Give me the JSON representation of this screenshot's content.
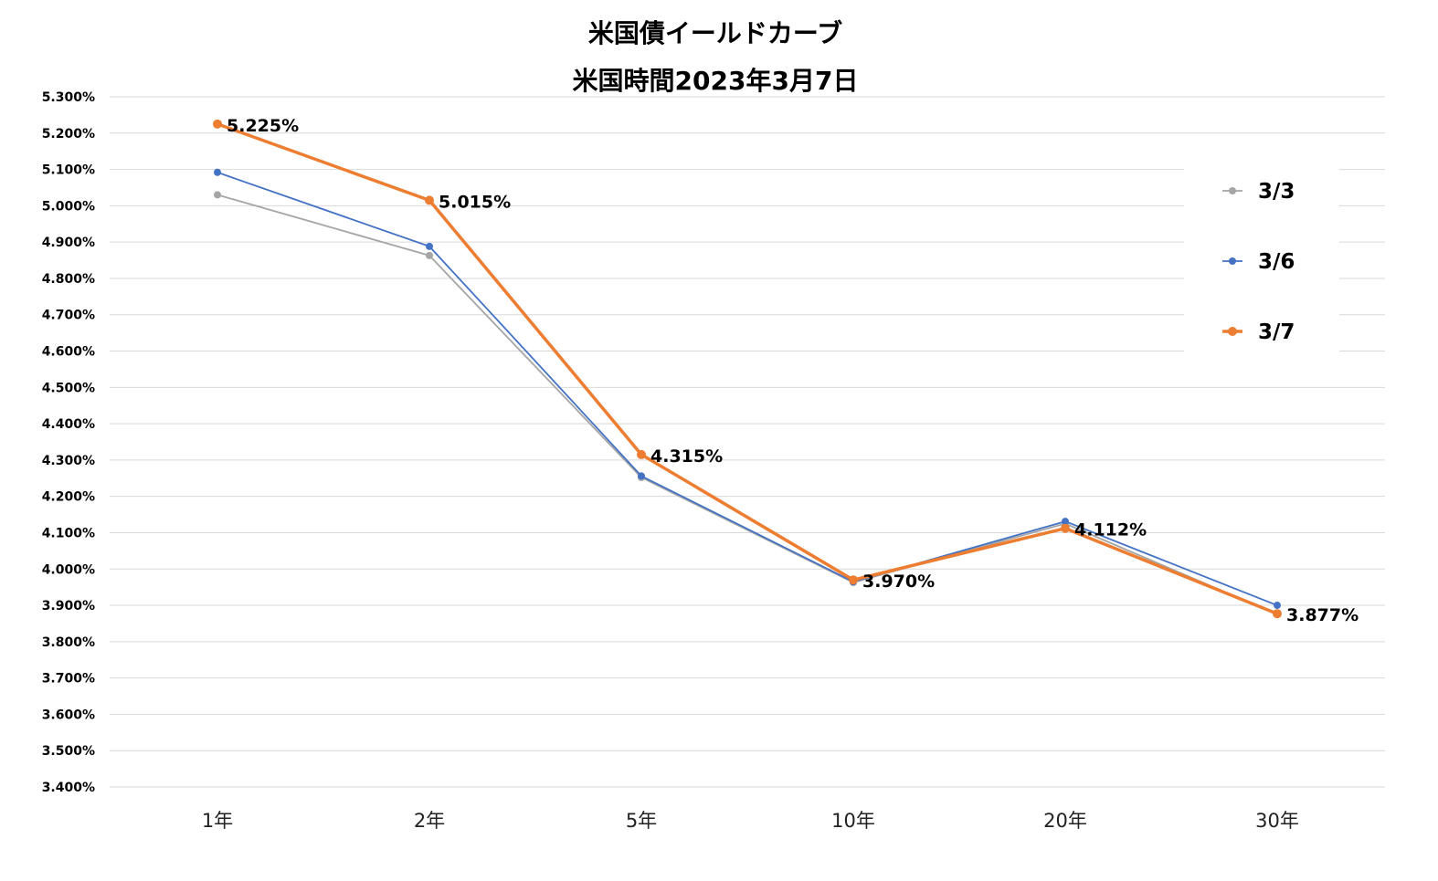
{
  "chart_data": {
    "type": "line",
    "title": "米国債イールドカーブ",
    "subtitle": "米国時間2023年3月7日",
    "categories": [
      "1年",
      "2年",
      "5年",
      "10年",
      "20年",
      "30年"
    ],
    "ylim": [
      3.4,
      5.3
    ],
    "y_ticks": [
      "3.400%",
      "3.500%",
      "3.600%",
      "3.700%",
      "3.800%",
      "3.900%",
      "4.000%",
      "4.100%",
      "4.200%",
      "4.300%",
      "4.400%",
      "4.500%",
      "4.600%",
      "4.700%",
      "4.800%",
      "4.900%",
      "5.000%",
      "5.100%",
      "5.200%",
      "5.300%"
    ],
    "grid": true,
    "legend_position": "right",
    "series": [
      {
        "name": "3/3",
        "color": "#a5a5a5",
        "values": [
          5.03,
          4.863,
          4.252,
          3.963,
          4.125,
          3.875
        ]
      },
      {
        "name": "3/6",
        "color": "#4472c4",
        "values": [
          5.092,
          4.888,
          4.256,
          3.965,
          4.131,
          3.9
        ]
      },
      {
        "name": "3/7",
        "color": "#ed7d31",
        "values": [
          5.225,
          5.015,
          4.315,
          3.97,
          4.112,
          3.877
        ]
      }
    ],
    "data_labels": [
      "5.225%",
      "5.015%",
      "4.315%",
      "3.970%",
      "4.112%",
      "3.877%"
    ]
  }
}
